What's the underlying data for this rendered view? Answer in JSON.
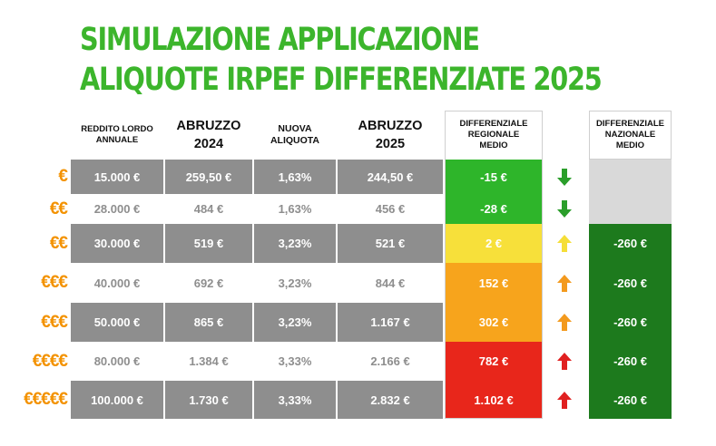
{
  "title": {
    "line1": "SIMULAZIONE APPLICAZIONE",
    "line2": "ALIQUOTE IRPEF DIFFERENZIATE 2025"
  },
  "headers": {
    "reddito": [
      "REDDITO LORDO",
      "ANNUALE"
    ],
    "abruzzo2024": [
      "ABRUZZO",
      "2024"
    ],
    "aliquota": [
      "NUOVA",
      "ALIQUOTA"
    ],
    "abruzzo2025": [
      "ABRUZZO",
      "2025"
    ],
    "diff_regionale": [
      "DIFFERENZIALE",
      "REGIONALE",
      "MEDIO"
    ],
    "diff_nazionale": [
      "DIFFERENZIALE",
      "NAZIONALE",
      "MEDIO"
    ]
  },
  "colors": {
    "title": "#3cb52c",
    "euro": "#f39200",
    "grey_band": "#8e8e8e",
    "nazionale_green": "#1d7a1d",
    "nazionale_grey": "#d9d9d9"
  },
  "rows": [
    {
      "euro": "€",
      "reddito": "15.000 €",
      "a2024": "259,50 €",
      "aliquota": "1,63%",
      "a2025": "244,50 €",
      "diff": "-15 €",
      "diff_color": "#2eb52a",
      "arrow": "down",
      "arrow_color": "#2a9e2a",
      "nazionale": ""
    },
    {
      "euro": "€€",
      "reddito": "28.000 €",
      "a2024": "484 €",
      "aliquota": "1,63%",
      "a2025": "456 €",
      "diff": "-28 €",
      "diff_color": "#2eb52a",
      "arrow": "down",
      "arrow_color": "#2a9e2a",
      "nazionale": ""
    },
    {
      "euro": "€€",
      "reddito": "30.000 €",
      "a2024": "519 €",
      "aliquota": "3,23%",
      "a2025": "521 €",
      "diff": "2 €",
      "diff_color": "#f7e03a",
      "arrow": "up",
      "arrow_color": "#f5de38",
      "nazionale": "-260 €"
    },
    {
      "euro": "€€€",
      "reddito": "40.000 €",
      "a2024": "692 €",
      "aliquota": "3,23%",
      "a2025": "844 €",
      "diff": "152 €",
      "diff_color": "#f7a41c",
      "arrow": "up",
      "arrow_color": "#f39a1e",
      "nazionale": "-260 €"
    },
    {
      "euro": "€€€",
      "reddito": "50.000 €",
      "a2024": "865 €",
      "aliquota": "3,23%",
      "a2025": "1.167 €",
      "diff": "302 €",
      "diff_color": "#f7a41c",
      "arrow": "up",
      "arrow_color": "#f39a1e",
      "nazionale": "-260 €"
    },
    {
      "euro": "€€€€",
      "reddito": "80.000 €",
      "a2024": "1.384 €",
      "aliquota": "3,33%",
      "a2025": "2.166 €",
      "diff": "782 €",
      "diff_color": "#e8261b",
      "arrow": "up",
      "arrow_color": "#e02020",
      "nazionale": "-260 €"
    },
    {
      "euro": "€€€€€",
      "reddito": "100.000 €",
      "a2024": "1.730 €",
      "aliquota": "3,33%",
      "a2025": "2.832 €",
      "diff": "1.102 €",
      "diff_color": "#e8261b",
      "arrow": "up",
      "arrow_color": "#e02020",
      "nazionale": "-260 €"
    }
  ]
}
